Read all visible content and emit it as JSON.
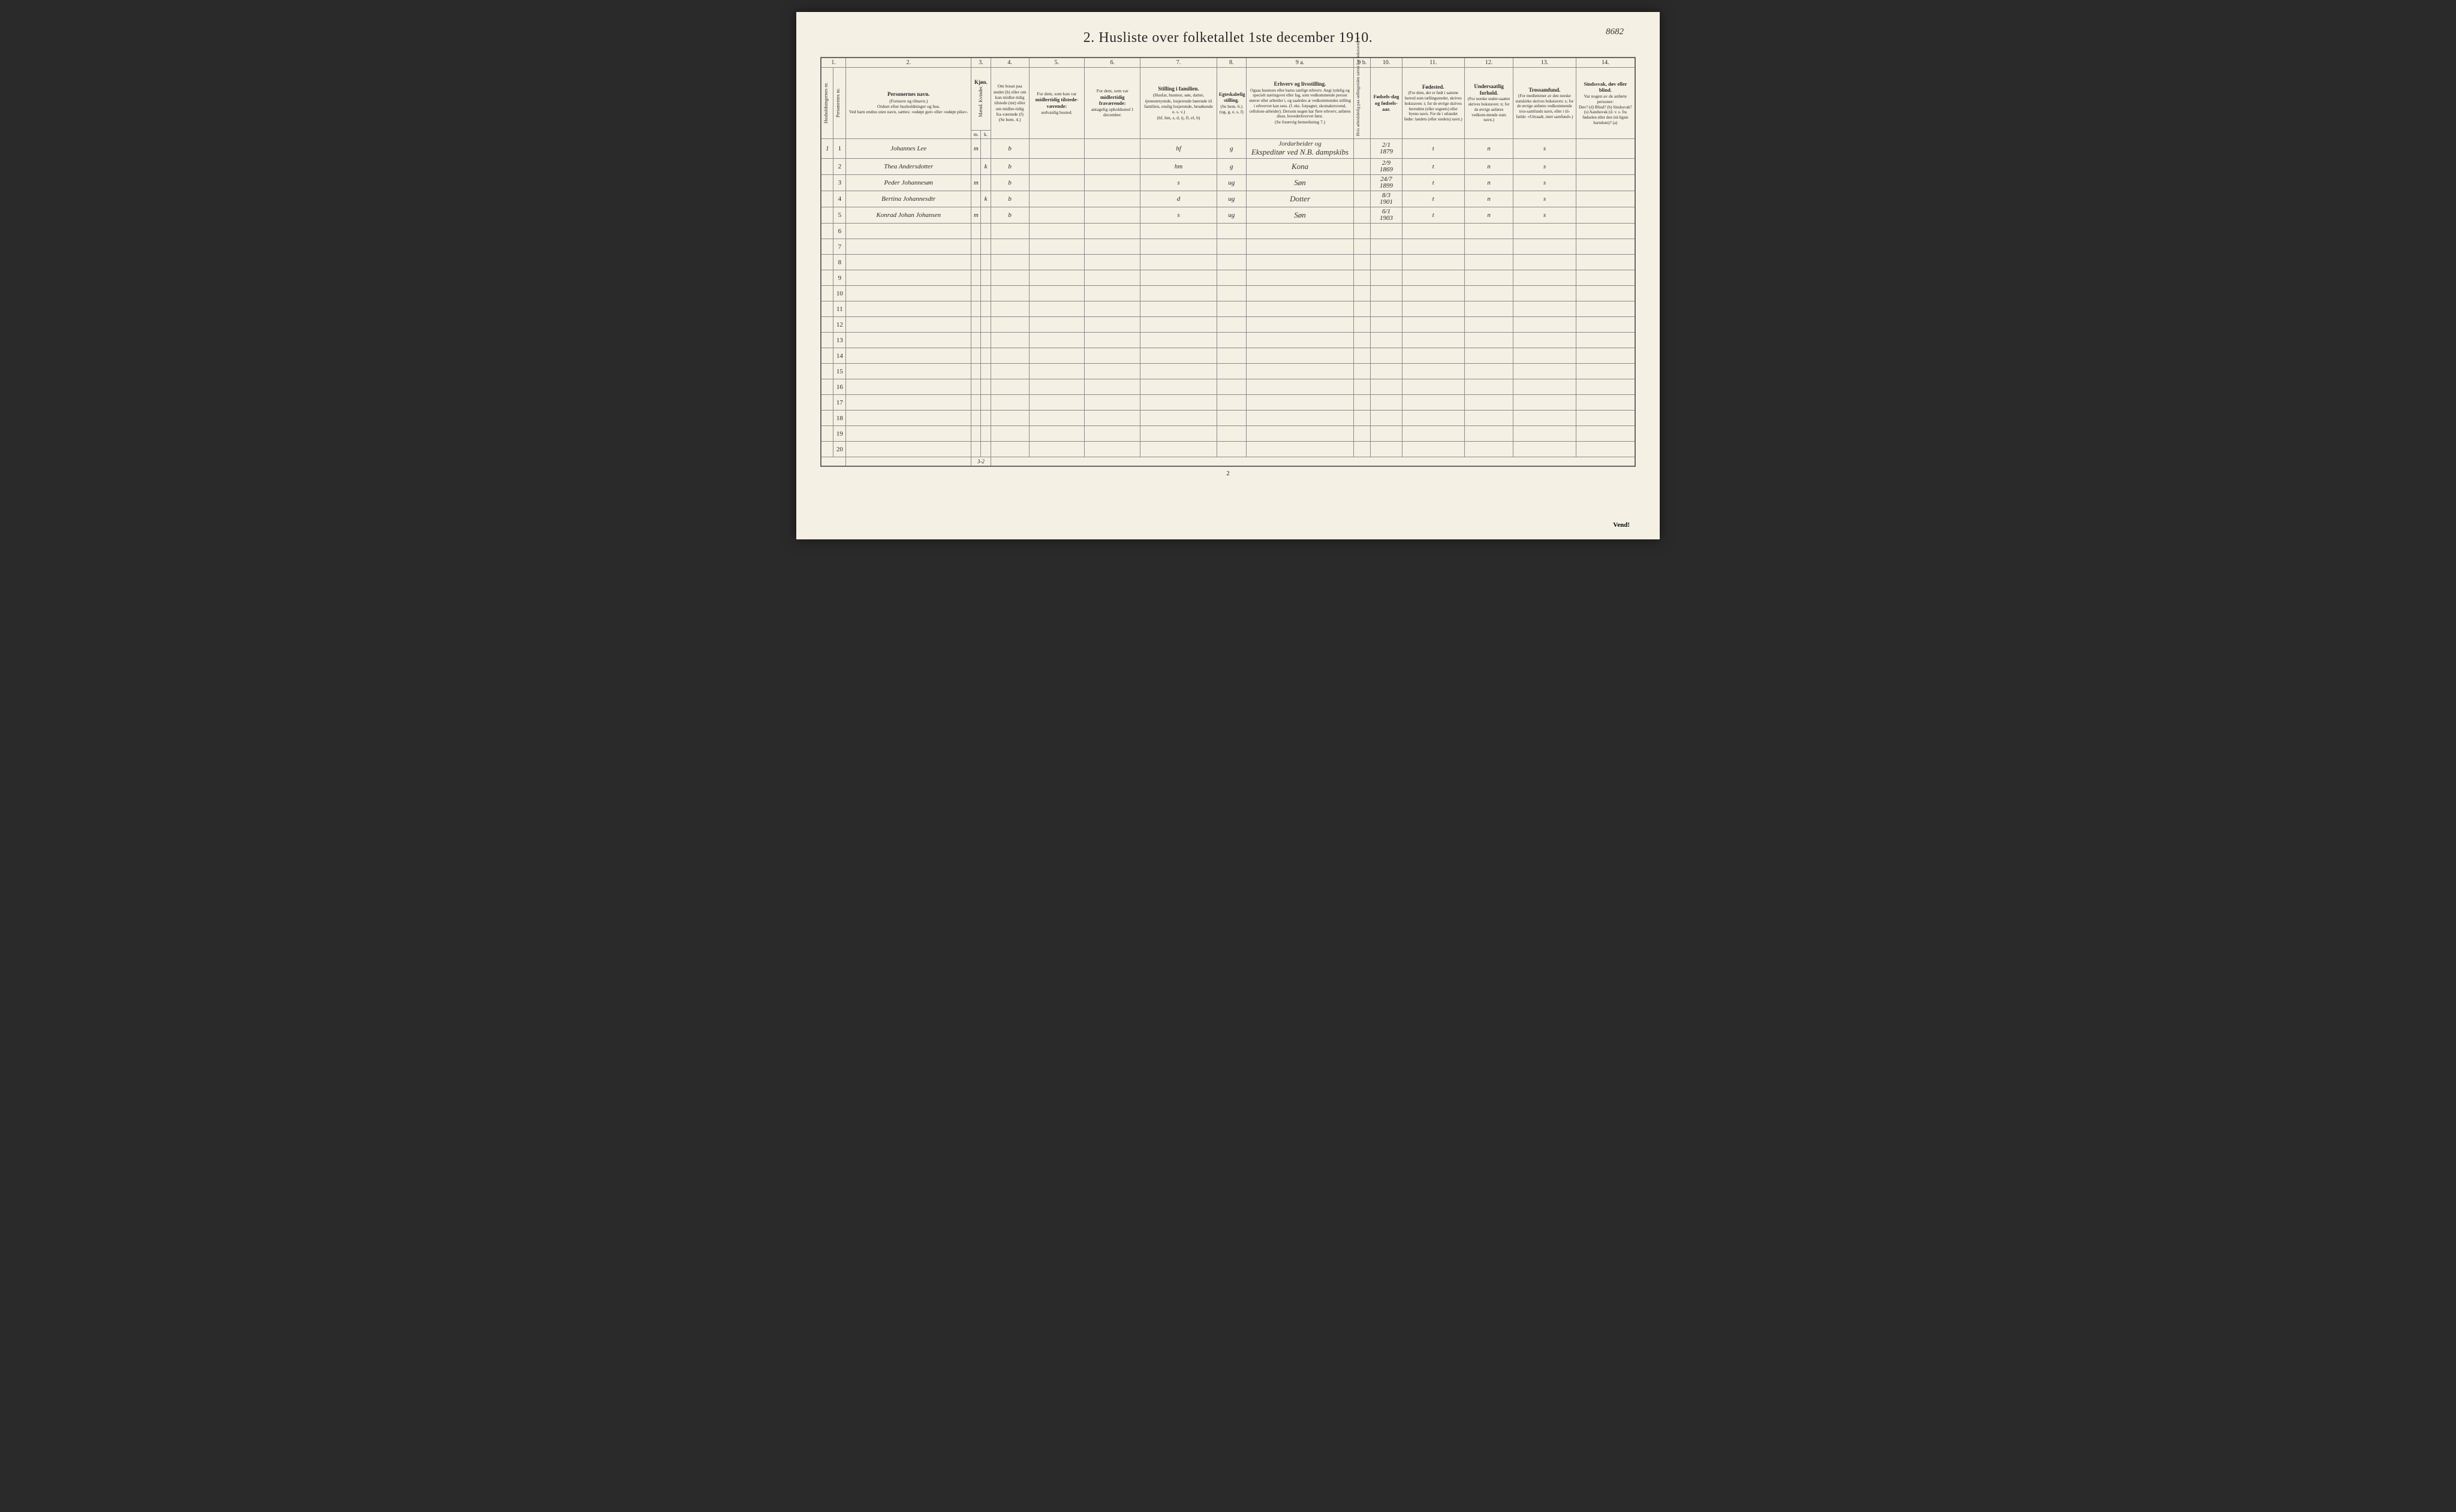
{
  "corner_number": "8682",
  "title": "2.  Husliste over folketallet 1ste december 1910.",
  "column_numbers": [
    "1.",
    "2.",
    "3.",
    "4.",
    "5.",
    "6.",
    "7.",
    "8.",
    "9 a.",
    "9 b.",
    "10.",
    "11.",
    "12.",
    "13.",
    "14."
  ],
  "headers": {
    "c1a": "Husholdningernes nr.",
    "c1b": "Personernes nr.",
    "c2_title": "Personernes navn.",
    "c2_sub1": "(Fornavn og tilnavn.)",
    "c2_sub2": "Ordnet efter husholdninger og hus.",
    "c2_sub3": "Ved barn endnu uten navn, sættes: «udøpt gut» eller «udøpt pike».",
    "c3": "Kjøn.",
    "c3_sub": "Mænd.  Kvinder.",
    "c3_mk_m": "m.",
    "c3_mk_k": "k.",
    "c4_l1": "Om bosat paa stedet (b) eller om kun midler-tidig tilstede (mt) eller om midler-tidig fra-værende (f)",
    "c4_l2": "(Se bem. 4.)",
    "c5_l1": "For dem, som kun var",
    "c5_l2": "midlertidig tilstede-værende:",
    "c5_l3": "sedvanlig bosted.",
    "c6_l1": "For dem, som var",
    "c6_l2": "midlertidig fraværende:",
    "c6_l3": "antagelig opholdssted 1 december.",
    "c7_l1": "Stilling i familien.",
    "c7_l2": "(Husfar, husmor, søn, datter, tjenestetyende, losjerende hørende til familien, enslig losjerende, besøkende o. s. v.)",
    "c7_l3": "(hf, hm, s, d, tj, fl, el, b)",
    "c8_l1": "Egteskabelig stilling.",
    "c8_l2": "(Se bem. 6.)",
    "c8_l3": "(ug, g, e, s, f)",
    "c9a_l1": "Erhverv og livsstilling.",
    "c9a_l2": "Ogsaa husmors eller barns særlige erhverv. Angi tydelig og specielt næringsvei eller fag, som vedkommende person utøver eller arbeider i, og saaledes at vedkommendes stilling i erhvervet kan sees. (f. eks. forpagter, skomakersvend, cellulose-arbeider). Dersom nogen har flere erhverv, anføres disse, hovederhvervet først.",
    "c9a_l3": "(Se forøvrig bemerkning 7.)",
    "c9b": "Hvis arbeidsledig paa tællingstiden sættes her bokstaven: l.",
    "c10_l1": "Fødsels-dag og fødsels-aar.",
    "c11_l1": "Fødested.",
    "c11_l2": "(For dem, der er født i samme herred som tællingsstedet, skrives bokstaven: t; for de øvrige skrives herredets (eller sognets) eller byens navn. For de i utlandet fødte: landets (eller stedets) navn.)",
    "c12_l1": "Undersaatlig forhold.",
    "c12_l2": "(For norske under-saatter skrives bokstaven: n; for de øvrige anføres vedkom-mende stats navn.)",
    "c13_l1": "Trossamfund.",
    "c13_l2": "(For medlemmer av den norske statskirke skrives bokstaven: s; for de øvrige anføres vedkommende tros-samfunds navn, eller i til-fælde: «Uttraadt, intet samfund».)",
    "c14_l1": "Sindssvak, døv eller blind.",
    "c14_l2": "Var nogen av de anførte personer:",
    "c14_l3": "Døv? (d)  Blind? (b)  Sindssvak? (s)  Aandssvak (d. v. s. fra fødselen eller den tid-ligste barndom)? (a)"
  },
  "rows": [
    {
      "hh": "1",
      "pn": "1",
      "name": "Johannes Lee",
      "m": "m",
      "k": "",
      "bosat": "b",
      "c5": "",
      "c6": "",
      "stilling": "hf",
      "egte": "g",
      "erhverv_pre": "Jordarbeider og",
      "erhverv": "Ekspeditør ved N.B. dampskibs",
      "fodsel_top": "2/1",
      "fodsel_bot": "1879",
      "fodested": "t",
      "under": "n",
      "tros": "s"
    },
    {
      "hh": "",
      "pn": "2",
      "name": "Thea Andersdotter",
      "m": "",
      "k": "k",
      "bosat": "b",
      "c5": "",
      "c6": "",
      "stilling": "hm",
      "egte": "g",
      "erhverv": "Kona",
      "fodsel_top": "2/9",
      "fodsel_bot": "1869",
      "fodested": "t",
      "under": "n",
      "tros": "s"
    },
    {
      "hh": "",
      "pn": "3",
      "name": "Peder Johannesøn",
      "m": "m",
      "k": "",
      "bosat": "b",
      "c5": "",
      "c6": "",
      "stilling": "s",
      "egte": "ug",
      "erhverv": "Søn",
      "fodsel_top": "24/7",
      "fodsel_bot": "1899",
      "fodested": "t",
      "under": "n",
      "tros": "s"
    },
    {
      "hh": "",
      "pn": "4",
      "name": "Bertina Johannesdtr",
      "m": "",
      "k": "k",
      "bosat": "b",
      "c5": "",
      "c6": "",
      "stilling": "d",
      "egte": "ug",
      "erhverv": "Dotter",
      "fodsel_top": "8/3",
      "fodsel_bot": "1901",
      "fodested": "t",
      "under": "n",
      "tros": "s"
    },
    {
      "hh": "",
      "pn": "5",
      "name": "Konrad Johan Johansen",
      "m": "m",
      "k": "",
      "bosat": "b",
      "c5": "",
      "c6": "",
      "stilling": "s",
      "egte": "ug",
      "erhverv": "Søn",
      "fodsel_top": "6/1",
      "fodsel_bot": "1903",
      "fodested": "t",
      "under": "n",
      "tros": "s"
    }
  ],
  "empty_rows": [
    6,
    7,
    8,
    9,
    10,
    11,
    12,
    13,
    14,
    15,
    16,
    17,
    18,
    19,
    20
  ],
  "footer_tally": "3-2",
  "page_bottom_num": "2",
  "vend": "Vend!",
  "colors": {
    "page_bg": "#f4f1e4",
    "border": "#888",
    "text": "#2a2a2a",
    "cursive": "#3a3430"
  }
}
